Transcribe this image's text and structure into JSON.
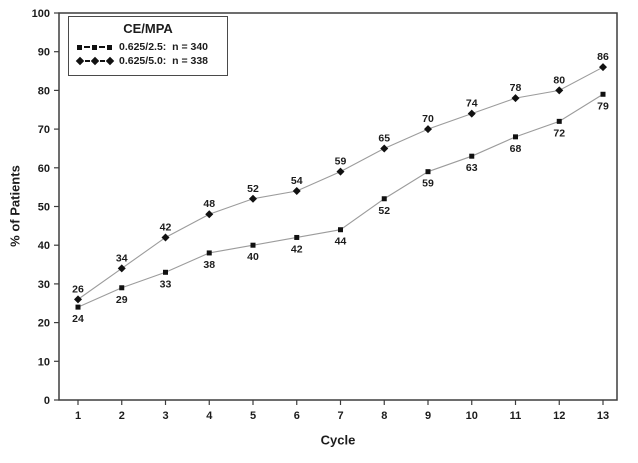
{
  "figure": {
    "background": "#ffffff",
    "frame_color": "#3d3d3d",
    "text_color": "#1c1c1c"
  },
  "chart_data": {
    "type": "line",
    "title": "",
    "xlabel": "Cycle",
    "ylabel": "% of Patients",
    "x": [
      1,
      2,
      3,
      4,
      5,
      6,
      7,
      8,
      9,
      10,
      11,
      12,
      13
    ],
    "xlim": [
      1,
      13
    ],
    "ylim": [
      0,
      100
    ],
    "ytick_step": 10,
    "grid": false,
    "legend": {
      "title": "CE/MPA",
      "position": "top-left",
      "entries": [
        {
          "label": "0.625/2.5:  n = 340",
          "marker": "square",
          "line_style": "dashed"
        },
        {
          "label": "0.625/5.0:  n = 338",
          "marker": "diamond",
          "line_style": "solid"
        }
      ]
    },
    "series": [
      {
        "name": "CE/MPA 0.625/2.5 (n = 340)",
        "marker": "square",
        "label_position": "below",
        "marker_color": "#111111",
        "line_color": "#9c9c9c",
        "values": [
          24,
          29,
          33,
          38,
          40,
          42,
          44,
          52,
          59,
          63,
          68,
          72,
          79
        ]
      },
      {
        "name": "CE/MPA 0.625/5.0 (n = 338)",
        "marker": "diamond",
        "label_position": "above",
        "marker_color": "#111111",
        "line_color": "#9c9c9c",
        "values": [
          26,
          34,
          42,
          48,
          52,
          54,
          59,
          65,
          70,
          74,
          78,
          80,
          86
        ]
      }
    ]
  }
}
